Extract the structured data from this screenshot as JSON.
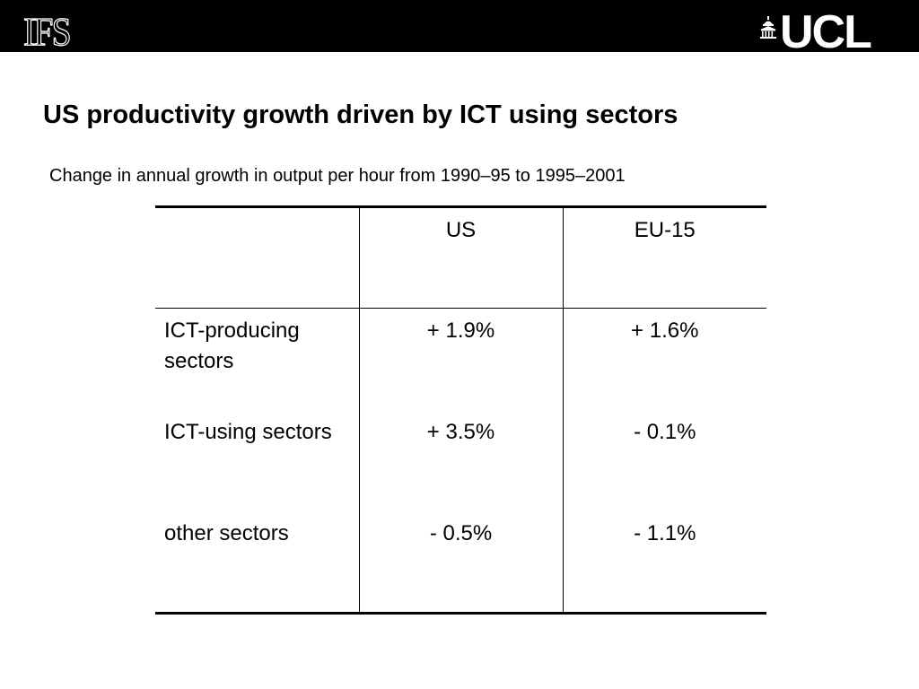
{
  "header": {
    "left_logo": "IFS",
    "right_logo": "UCL"
  },
  "title": "US productivity growth driven by ICT using sectors",
  "subtitle": "Change in annual growth in output per hour from 1990–95 to 1995–2001",
  "table": {
    "columns": [
      "",
      "US",
      "EU-15"
    ],
    "rows": [
      {
        "label": "ICT-producing sectors",
        "us": "+ 1.9%",
        "eu15": "+ 1.6%"
      },
      {
        "label": "ICT-using sectors",
        "us": "+ 3.5%",
        "eu15": "- 0.1%"
      },
      {
        "label": "other sectors",
        "us": "- 0.5%",
        "eu15": "- 1.1%"
      }
    ]
  }
}
